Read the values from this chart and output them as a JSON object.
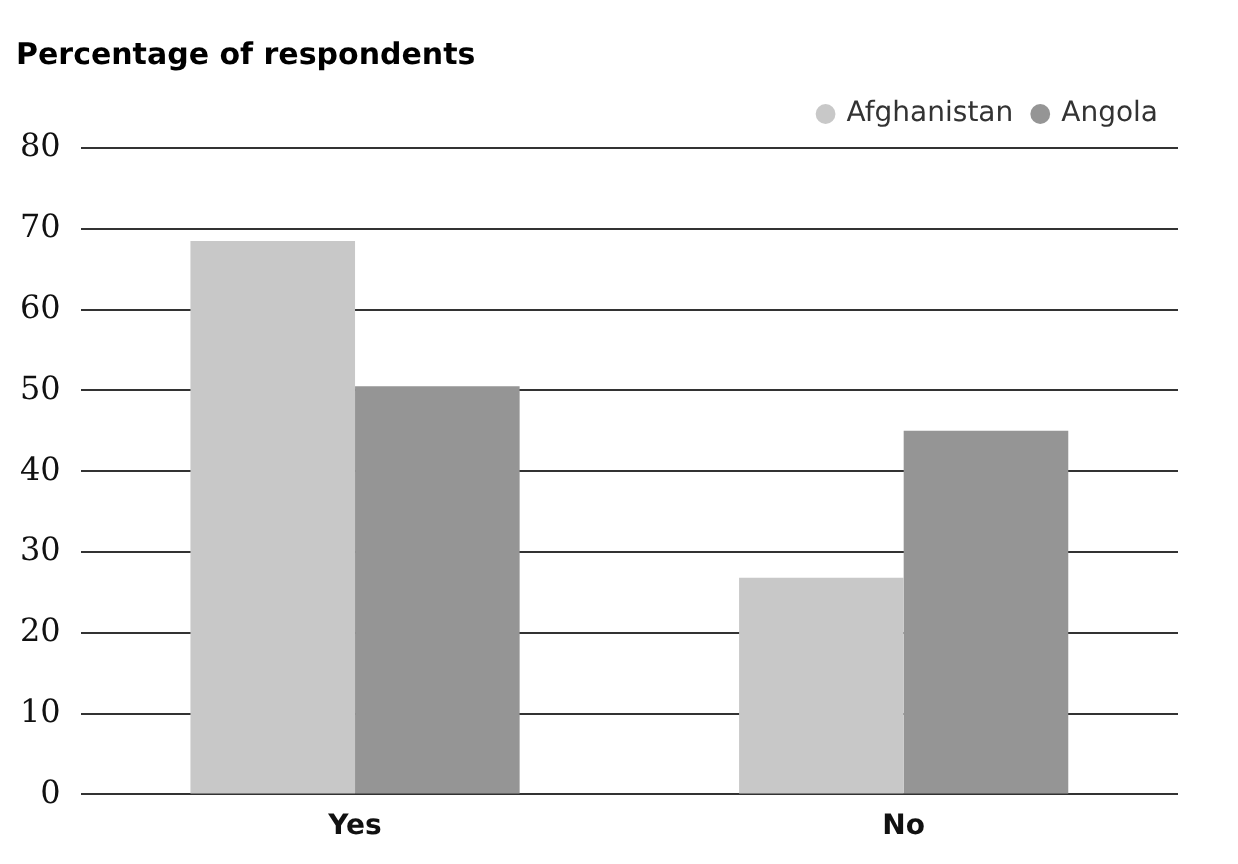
{
  "chart_data": {
    "type": "bar",
    "title": "Percentage of respondents",
    "categories": [
      "Yes",
      "No"
    ],
    "series": [
      {
        "name": "Afghanistan",
        "color": "#c8c8c8",
        "values": [
          68.5,
          26.8
        ]
      },
      {
        "name": "Angola",
        "color": "#959595",
        "values": [
          50.5,
          45
        ]
      }
    ],
    "ylim": [
      0,
      80
    ],
    "yticks": [
      0,
      10,
      20,
      30,
      40,
      50,
      60,
      70,
      80
    ],
    "grid": "y",
    "legend": "top right"
  }
}
